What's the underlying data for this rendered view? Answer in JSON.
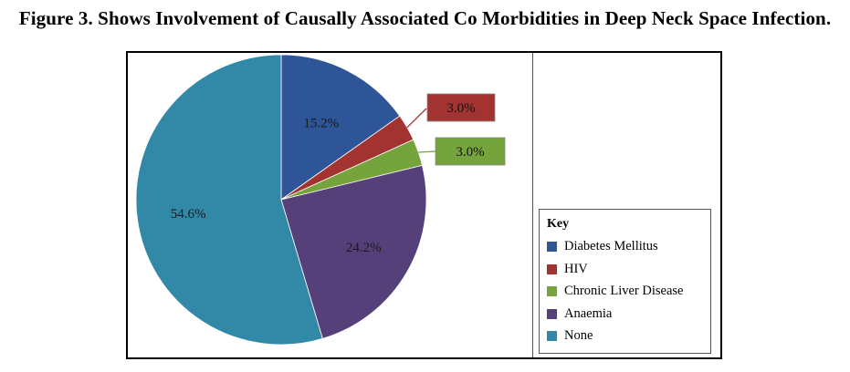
{
  "figure_title": "Figure 3. Shows Involvement of Causally Associated Co Morbidities in Deep Neck Space Infection.",
  "legend": {
    "title": "Key",
    "items": [
      {
        "label": "Diabetes Mellitus",
        "color": "#2E5597"
      },
      {
        "label": "HIV",
        "color": "#A23331"
      },
      {
        "label": "Chronic Liver Disease",
        "color": "#75A33C"
      },
      {
        "label": "Anaemia",
        "color": "#56407A"
      },
      {
        "label": "None",
        "color": "#3288A7"
      }
    ]
  },
  "chart_data": {
    "type": "pie",
    "title": "",
    "categories": [
      "Diabetes Mellitus",
      "HIV",
      "Chronic Liver Disease",
      "Anaemia",
      "None"
    ],
    "values": [
      15.2,
      3.0,
      3.0,
      24.2,
      54.6
    ],
    "data_labels": [
      "15.2%",
      "3.0%",
      "3.0%",
      "24.2%",
      "54.6%"
    ],
    "colors": [
      "#2E5597",
      "#A23331",
      "#75A33C",
      "#56407A",
      "#3288A7"
    ],
    "start_angle_deg": 0,
    "direction": "clockwise",
    "legend_position": "right"
  }
}
